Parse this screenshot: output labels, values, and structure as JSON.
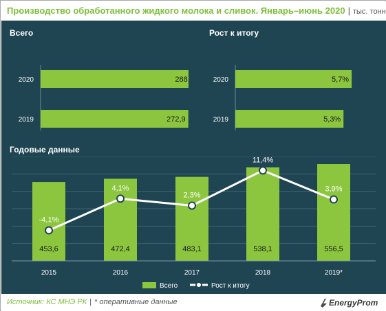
{
  "title": "Производство обработанного жидкого молока и сливок. Январь–июнь 2020",
  "unit": "тыс. тонн",
  "sections": {
    "total": "Всего",
    "growth": "Рост к итогу",
    "annual": "Годовые данные"
  },
  "source": {
    "label": "Источник: КС МНЭ РК",
    "note": "* оперативные данные"
  },
  "logo": "EnergyProm",
  "colors": {
    "panel_bg": "#1f4452",
    "bar": "#8cc63f",
    "line": "#ffffff",
    "title": "#7dbf3a"
  },
  "chart_data": [
    {
      "type": "bar",
      "orientation": "horizontal",
      "title": "Всего",
      "categories": [
        "2020",
        "2019"
      ],
      "values": [
        288.5,
        272.9
      ],
      "value_labels": [
        "288,5",
        "272,9"
      ],
      "xlim": [
        0,
        300
      ]
    },
    {
      "type": "bar",
      "orientation": "horizontal",
      "title": "Рост к итогу",
      "categories": [
        "2020",
        "2019"
      ],
      "values": [
        5.7,
        5.3
      ],
      "value_labels": [
        "5,7%",
        "5,3%"
      ],
      "xlim": [
        0,
        6
      ]
    },
    {
      "type": "bar",
      "title": "Годовые данные",
      "categories": [
        "2015",
        "2016",
        "2017",
        "2018",
        "2019*"
      ],
      "series": [
        {
          "name": "Всего",
          "type": "bar",
          "values": [
            453.6,
            472.4,
            483.1,
            538.1,
            556.5
          ],
          "value_labels": [
            "453,6",
            "472,4",
            "483,1",
            "538,1",
            "556,5"
          ]
        },
        {
          "name": "Рост к итогу",
          "type": "line",
          "values": [
            -4.1,
            4.1,
            2.3,
            11.4,
            3.9
          ],
          "value_labels": [
            "-4,1%",
            "4,1%",
            "2,3%",
            "11,4%",
            "3,9%"
          ]
        }
      ],
      "ylim": [
        0,
        600
      ],
      "y2lim": [
        -12,
        15
      ],
      "grid": true,
      "legend": "bottom"
    }
  ]
}
